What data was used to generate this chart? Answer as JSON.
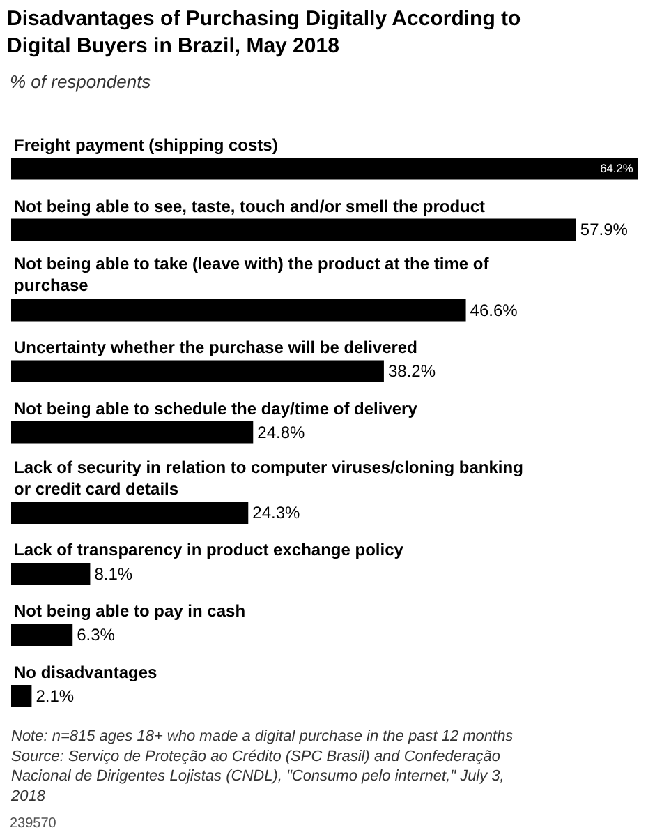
{
  "chart_data": {
    "type": "bar",
    "orientation": "horizontal",
    "title": "Disadvantages of Purchasing Digitally According to\nDigital Buyers in Brazil, May 2018",
    "subtitle": "% of respondents",
    "categories": [
      "Freight payment (shipping costs)",
      "Not being able to see, taste, touch and/or smell the product",
      "Not being able to take (leave with) the product at the time of\npurchase",
      "Uncertainty whether the purchase will be delivered",
      "Not being able to schedule the day/time of delivery",
      "Lack of security in relation to computer viruses/cloning banking\nor credit card details",
      "Lack of transparency in product exchange policy",
      "Not being able to pay in cash",
      "No disadvantages"
    ],
    "values": [
      64.2,
      57.9,
      46.6,
      38.2,
      24.8,
      24.3,
      8.1,
      6.3,
      2.1
    ],
    "color": "#000000",
    "value_labels": [
      "64.2%",
      "57.9%",
      "46.6%",
      "38.2%",
      "24.8%",
      "24.3%",
      "8.1%",
      "6.3%",
      "2.1%"
    ],
    "annotations": [
      "Note: n=815 ages 18+ who made a digital purchase in the past 12 months\nSource: Serviço de Proteção ao Crédito (SPC Brasil) and Confederação\nNacional de Dirigentes Lojistas (CNDL), \"Consumo pelo internet,\" July 3,\n2018",
      "239570"
    ],
    "legend": false
  }
}
